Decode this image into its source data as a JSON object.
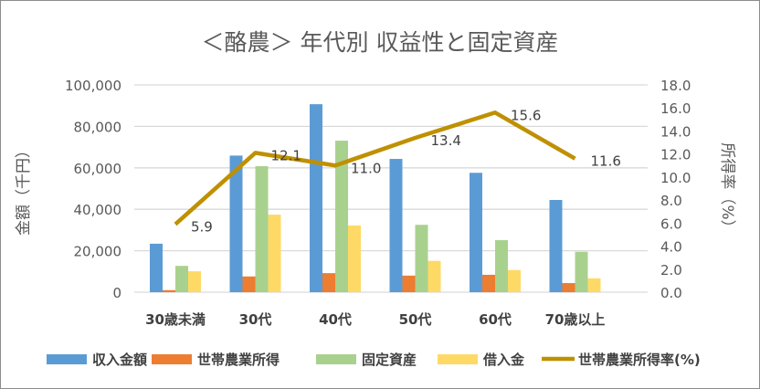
{
  "chart_data": {
    "type": "bar+line",
    "title": "＜酪農＞ 年代別 収益性と固定資産",
    "ylabel": "金額（千円）",
    "y2label": "所得率（%）",
    "ylim": [
      0,
      100000
    ],
    "y2lim": [
      0,
      18.0
    ],
    "yticks": [
      "0",
      "20,000",
      "40,000",
      "60,000",
      "80,000",
      "100,000"
    ],
    "y2ticks": [
      "0.0",
      "2.0",
      "4.0",
      "6.0",
      "8.0",
      "10.0",
      "12.0",
      "14.0",
      "16.0",
      "18.0"
    ],
    "grid": true,
    "legend_position": "bottom",
    "categories": [
      "30歳未満",
      "30代",
      "40代",
      "50代",
      "60代",
      "70歳以上"
    ],
    "series": [
      {
        "name": "収入金額",
        "type": "bar",
        "color": "#5b9bd5",
        "values": [
          23400,
          65900,
          90700,
          64300,
          57600,
          44500
        ]
      },
      {
        "name": "世帯農業所得",
        "type": "bar",
        "color": "#ed7d31",
        "values": [
          1000,
          7600,
          9200,
          8000,
          8400,
          4400
        ]
      },
      {
        "name": "固定資産",
        "type": "bar",
        "color": "#a9d18e",
        "values": [
          12700,
          60800,
          73100,
          32500,
          25100,
          19500
        ]
      },
      {
        "name": "借入金",
        "type": "bar",
        "color": "#ffd966",
        "values": [
          10100,
          37400,
          32200,
          15100,
          10700,
          6700
        ]
      },
      {
        "name": "世帯農業所得率(%)",
        "type": "line",
        "axis": "right",
        "color": "#bf9000",
        "values": [
          5.9,
          12.1,
          11.0,
          13.4,
          15.6,
          11.6
        ],
        "labels": [
          "5.9",
          "12.1",
          "11.0",
          "13.4",
          "15.6",
          "11.6"
        ]
      }
    ]
  }
}
